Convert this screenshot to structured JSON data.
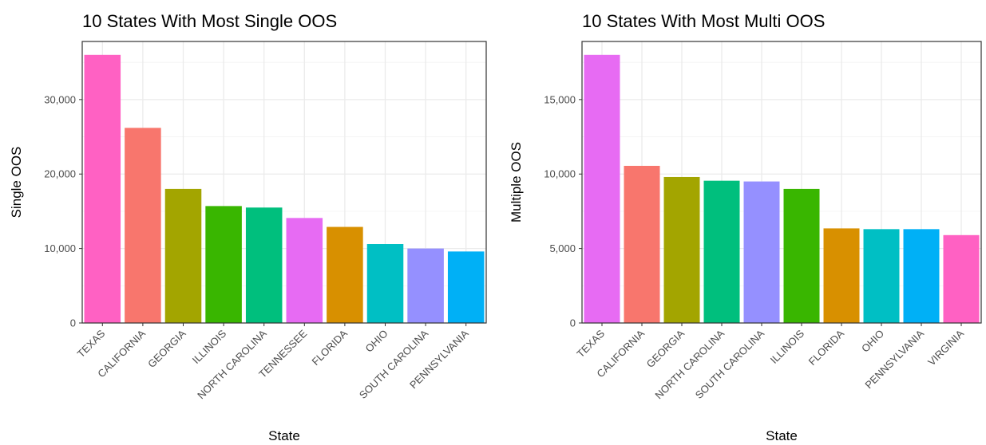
{
  "chart_data": [
    {
      "type": "bar",
      "title": "10 States With Most Single OOS",
      "xlabel": "State",
      "ylabel": "Single OOS",
      "ylim": [
        0,
        37800
      ],
      "yticks": [
        0,
        10000,
        20000,
        30000
      ],
      "ytick_labels": [
        "0",
        "10,000",
        "20,000",
        "30,000"
      ],
      "categories": [
        "TEXAS",
        "CALIFORNIA",
        "GEORGIA",
        "ILLINOIS",
        "NORTH CAROLINA",
        "TENNESSEE",
        "FLORIDA",
        "OHIO",
        "SOUTH CAROLINA",
        "PENNSYLVANIA"
      ],
      "values": [
        36000,
        26200,
        18000,
        15700,
        15500,
        14100,
        12900,
        10600,
        10000,
        9600
      ],
      "colors": [
        "#FF61C3",
        "#F8766D",
        "#A3A500",
        "#39B600",
        "#00BF7D",
        "#E76BF3",
        "#D89000",
        "#00BFC4",
        "#9590FF",
        "#00B0F6"
      ],
      "grid": true,
      "legend": "none"
    },
    {
      "type": "bar",
      "title": "10 States With Most Multi OOS",
      "xlabel": "State",
      "ylabel": "Multiple OOS",
      "ylim": [
        0,
        18900
      ],
      "yticks": [
        0,
        5000,
        10000,
        15000
      ],
      "ytick_labels": [
        "0",
        "5,000",
        "10,000",
        "15,000"
      ],
      "categories": [
        "TEXAS",
        "CALIFORNIA",
        "GEORGIA",
        "NORTH CAROLINA",
        "SOUTH CAROLINA",
        "ILLINOIS",
        "FLORIDA",
        "OHIO",
        "PENNSYLVANIA",
        "VIRGINIA"
      ],
      "values": [
        18000,
        10550,
        9800,
        9550,
        9500,
        9000,
        6350,
        6300,
        6300,
        5900
      ],
      "colors": [
        "#E76BF3",
        "#F8766D",
        "#A3A500",
        "#00BF7D",
        "#9590FF",
        "#39B600",
        "#D89000",
        "#00BFC4",
        "#00B0F6",
        "#FF61C3"
      ],
      "grid": true,
      "legend": "none"
    }
  ]
}
